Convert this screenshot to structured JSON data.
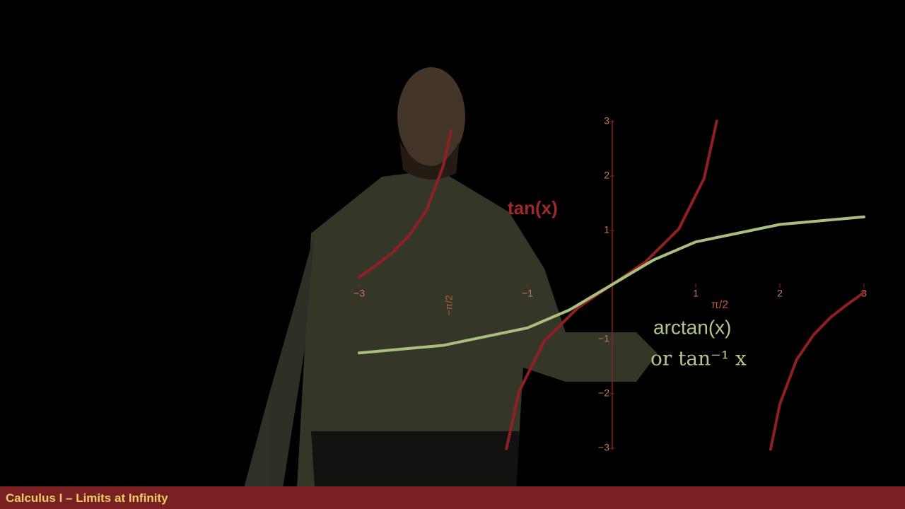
{
  "chart_data": {
    "type": "line",
    "xlim": [
      -3,
      3
    ],
    "ylim": [
      -3,
      3
    ],
    "xticks": [
      {
        "value": -3,
        "label": "−3"
      },
      {
        "value": -1,
        "label": "−1"
      },
      1,
      2,
      3
    ],
    "yticks": [
      3,
      2,
      1,
      {
        "value": -1,
        "label": "−1"
      },
      {
        "value": -2,
        "label": "−2"
      },
      {
        "value": -3,
        "label": "−3"
      }
    ],
    "series": [
      {
        "name": "tan(x)",
        "color": "#8e1f22",
        "x": [
          -3,
          -2.8,
          -2.6,
          -2.4,
          -2.2,
          -2.0,
          -1.91,
          -1.57,
          -1.25,
          -1.1,
          -0.8,
          -0.4,
          0,
          0.4,
          0.8,
          1.1,
          1.25,
          1.57,
          1.89,
          2.0,
          2.2,
          2.4,
          2.6,
          2.8,
          3
        ],
        "values": [
          0.14,
          0.36,
          0.6,
          0.92,
          1.37,
          2.19,
          2.83,
          null,
          -3.01,
          -1.96,
          -1.03,
          -0.42,
          0,
          0.42,
          1.03,
          1.96,
          3.01,
          null,
          -3.02,
          -2.19,
          -1.37,
          -0.92,
          -0.6,
          -0.36,
          -0.14
        ]
      },
      {
        "name": "arctan(x)",
        "color": "#a9bf7e",
        "x": [
          -3,
          -2,
          -1,
          -0.5,
          0,
          0.5,
          1,
          2,
          3
        ],
        "values": [
          -1.25,
          -1.11,
          -0.79,
          -0.46,
          0,
          0.46,
          0.79,
          1.11,
          1.25
        ]
      }
    ],
    "annotations": [
      "or tan⁻¹ x",
      "π/2",
      "−π/2"
    ]
  },
  "footer": {
    "title": "Calculus I – Limits at Infinity"
  }
}
